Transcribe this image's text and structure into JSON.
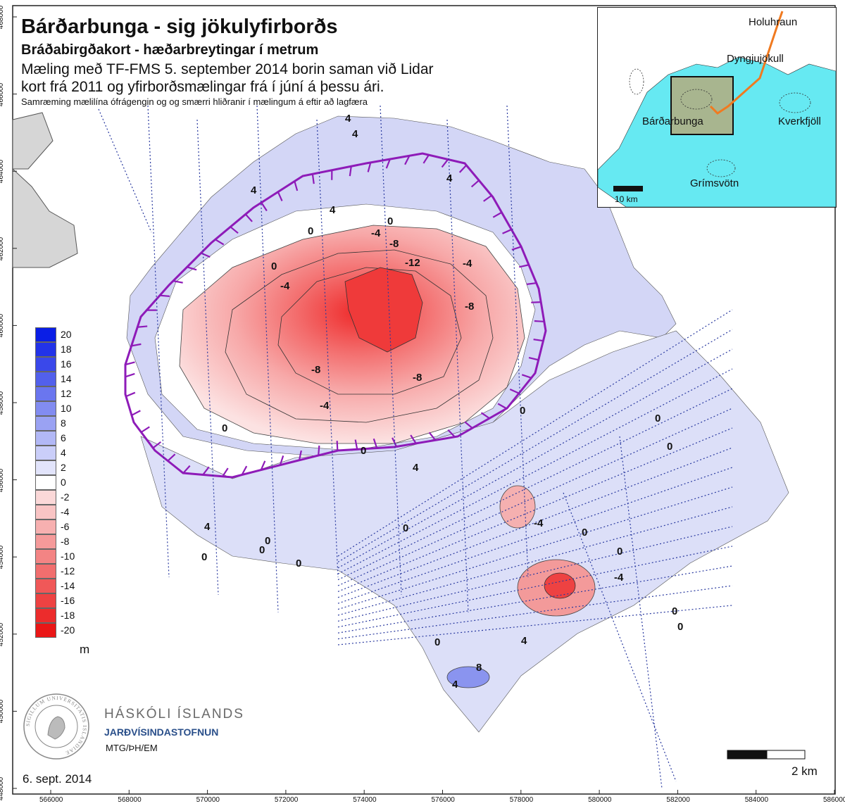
{
  "header": {
    "title": "Bárðarbunga - sig jökulyfirborðs",
    "subtitle": "Bráðabirgðakort - hæðarbreytingar í metrum",
    "description_line1": "Mæling með TF-FMS 5. september 2014 borin saman við Lidar",
    "description_line2": "kort frá 2011 og yfirborðsmælingar frá í júní á þessu ári.",
    "note": "Samræming mælilína ófrágengin og og smærri hliðranir í mælingum á eftir að lagfæra"
  },
  "axes": {
    "x_ticks": [
      "566000",
      "568000",
      "570000",
      "572000",
      "574000",
      "576000",
      "578000",
      "580000",
      "582000",
      "584000",
      "586000"
    ],
    "y_ticks": [
      "468000",
      "466000",
      "464000",
      "462000",
      "460000",
      "458000",
      "456000",
      "454000",
      "452000",
      "450000",
      "448000"
    ]
  },
  "legend": {
    "labels": [
      "20",
      "18",
      "16",
      "14",
      "12",
      "10",
      "8",
      "6",
      "4",
      "2",
      "0",
      "-2",
      "-4",
      "-6",
      "-8",
      "-10",
      "-12",
      "-14",
      "-16",
      "-18",
      "-20"
    ],
    "unit": "m",
    "colors": [
      "#0a1ee6",
      "#2233e8",
      "#3a48ea",
      "#5260ec",
      "#6a76ef",
      "#828cf1",
      "#9aa2f3",
      "#b2b8f6",
      "#cacef9",
      "#e2e4fb",
      "#ffffff",
      "#fbd8d8",
      "#f9c4c4",
      "#f7b0b0",
      "#f59a9a",
      "#f38484",
      "#f16e6e",
      "#f05858",
      "#ee4242",
      "#ec2c2c",
      "#ea1616"
    ]
  },
  "contour_labels": [
    "4",
    "4",
    "4",
    "4",
    "4",
    "0",
    "-4",
    "0",
    "-8",
    "-12",
    "0",
    "-4",
    "-4",
    "-8",
    "-8",
    "-8",
    "-4",
    "0",
    "0",
    "0",
    "4",
    "4",
    "0",
    "0",
    "0",
    "0",
    "-4",
    "0",
    "0",
    "0",
    "0",
    "0",
    "-4",
    "0",
    "0",
    "4",
    "8",
    "4",
    "0"
  ],
  "inset": {
    "places": [
      "Holuhraun",
      "Dyngjujökull",
      "Bárðarbunga",
      "Kverkfjöll",
      "Grímsvötn"
    ],
    "scale_label": "10 km",
    "colors": {
      "glacier": "#66e9f2",
      "box": "#a8b58f",
      "dyke": "#f07a20"
    }
  },
  "scale_bar": {
    "label": "2 km"
  },
  "footer": {
    "date": "6. sept. 2014",
    "credit": "MTG/ÞH/EM",
    "university": "HÁSKÓLI ÍSLANDS",
    "institute": "JARÐVÍSINDASTOFNUN",
    "seal_text": "SIGILLUM UNIVERSITATIS ISLANDIAE"
  },
  "colors": {
    "caldera_rim": "#8e1bb8",
    "land": "#d6d6d6",
    "flight_lines": "#2a3aa0"
  }
}
